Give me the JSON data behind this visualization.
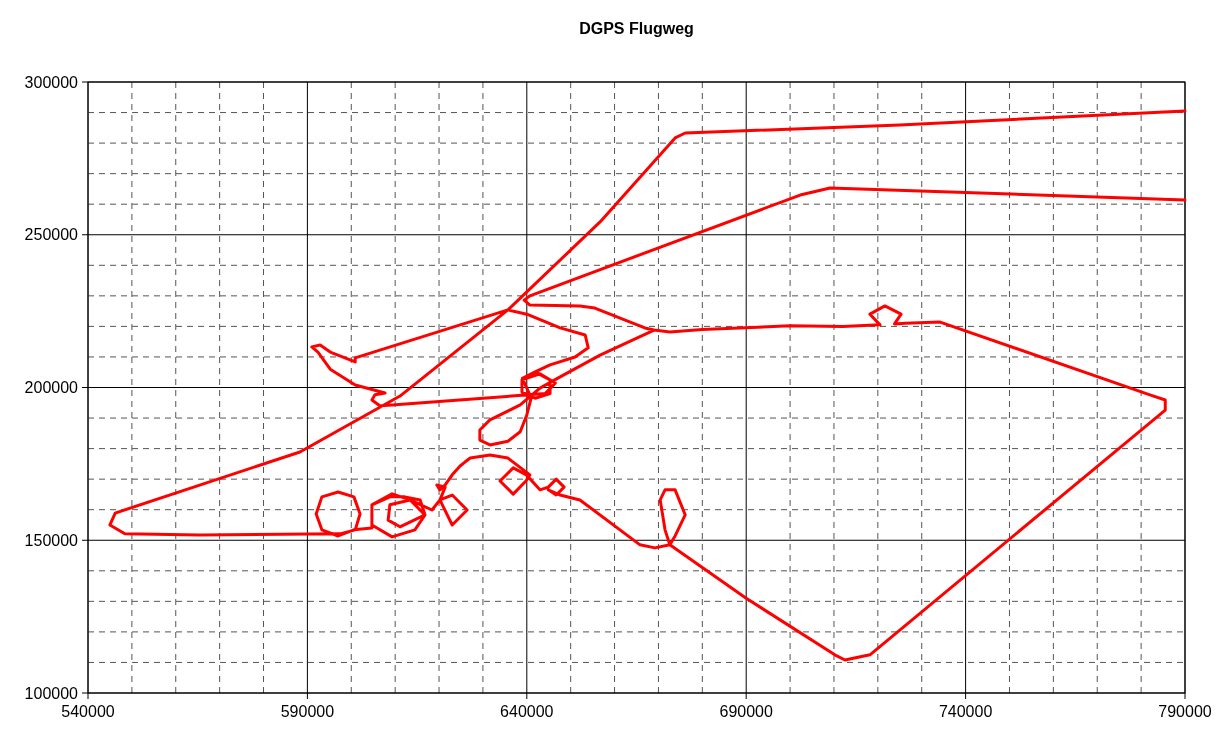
{
  "chart_data": {
    "type": "line",
    "title": "DGPS Flugweg",
    "xlim": [
      540000,
      790000
    ],
    "ylim": [
      100000,
      300000
    ],
    "xticks": [
      540000,
      {
        "value": 550000,
        "label": null
      },
      {
        "value": 560000,
        "label": null
      },
      {
        "value": 570000,
        "label": null
      },
      {
        "value": 580000,
        "label": null
      },
      590000,
      {
        "value": 600000,
        "label": null
      },
      {
        "value": 610000,
        "label": null
      },
      {
        "value": 620000,
        "label": null
      },
      {
        "value": 630000,
        "label": null
      },
      640000,
      {
        "value": 650000,
        "label": null
      },
      {
        "value": 660000,
        "label": null
      },
      {
        "value": 670000,
        "label": null
      },
      {
        "value": 680000,
        "label": null
      },
      690000,
      {
        "value": 700000,
        "label": null
      },
      {
        "value": 710000,
        "label": null
      },
      {
        "value": 720000,
        "label": null
      },
      {
        "value": 730000,
        "label": null
      },
      740000,
      {
        "value": 750000,
        "label": null
      },
      {
        "value": 760000,
        "label": null
      },
      {
        "value": 770000,
        "label": null
      },
      {
        "value": 780000,
        "label": null
      },
      790000
    ],
    "yticks": [
      100000,
      {
        "value": 110000,
        "label": null
      },
      {
        "value": 120000,
        "label": null
      },
      {
        "value": 130000,
        "label": null
      },
      {
        "value": 140000,
        "label": null
      },
      150000,
      {
        "value": 160000,
        "label": null
      },
      {
        "value": 170000,
        "label": null
      },
      {
        "value": 180000,
        "label": null
      },
      {
        "value": 190000,
        "label": null
      },
      200000,
      {
        "value": 210000,
        "label": null
      },
      {
        "value": 220000,
        "label": null
      },
      {
        "value": 230000,
        "label": null
      },
      {
        "value": 240000,
        "label": null
      },
      250000,
      {
        "value": 260000,
        "label": null
      },
      {
        "value": 270000,
        "label": null
      },
      {
        "value": 280000,
        "label": null
      },
      {
        "value": 290000,
        "label": null
      },
      300000
    ],
    "grid": true,
    "marker": "none",
    "line_style": "solid",
    "series": [
      {
        "color": "#ff0000",
        "x": [
          790000,
          725000,
          676100,
          673800,
          656700,
          635700,
          611100,
          588300,
          546200,
          545000,
          548400,
          565500,
          597400,
          600900,
          602000,
          600600,
          597000,
          593300,
          592000,
          593300,
          597000,
          600600,
          604700,
          604700,
          609300,
          613400,
          616800,
          614500,
          609300,
          604700,
          604700,
          608800,
          612200,
          615700,
          616800,
          611100,
          608400,
          608800,
          613400,
          618400,
          620200,
          623000,
          626400,
          623000,
          620200,
          621400,
          619500,
          620200,
          621400,
          623000,
          624800,
          625900,
          627100,
          631600,
          635700,
          640700,
          639800,
          636900,
          633900,
          636900,
          639900,
          643000,
          644900,
          646700,
          648500,
          646700,
          644900,
          647600,
          652100,
          665800,
          669200,
          672600,
          671500,
          670400,
          671500,
          673800,
          676100,
          673800,
          672600,
          690000,
          710200,
          712500,
          718200,
          785500,
          785500,
          782000,
          734200,
          726200,
          723800,
          725300,
          721600,
          718200,
          720500,
          712000,
          700000,
          680000,
          672600,
          669000,
          666900,
          655500,
          652100,
          640700,
          639400,
          640700,
          702300,
          709100,
          790000,
          null,
          669000,
          656700,
          647600,
          643000,
          638500,
          631600,
          629300,
          629300,
          631600,
          635700,
          638500,
          640000,
          641000,
          639000,
          641900,
          645300,
          645300,
          641900,
          638900,
          638900,
          643000,
          646500,
          644200,
          609300,
          606500,
          604700,
          605400,
          607700,
          600900,
          595200,
          592400,
          591000,
          592900,
          595200,
          600900,
          600900,
          635700,
          640000,
          647600,
          653300,
          654000,
          651000,
          645300,
          641900
        ],
        "values": [
          290500,
          285900,
          283300,
          281700,
          254200,
          225400,
          197200,
          178900,
          158900,
          155000,
          152100,
          151700,
          152100,
          153400,
          158600,
          164200,
          165800,
          164200,
          158600,
          153400,
          151400,
          153400,
          154000,
          161600,
          165200,
          163200,
          158300,
          153400,
          151100,
          155000,
          161600,
          164200,
          164200,
          163200,
          158300,
          154400,
          156600,
          161600,
          163200,
          159900,
          163200,
          155000,
          159900,
          164800,
          163200,
          167400,
          168100,
          166500,
          168100,
          171400,
          174300,
          175600,
          176900,
          177900,
          176900,
          171400,
          169400,
          165100,
          169400,
          173700,
          171400,
          166500,
          167400,
          170000,
          167400,
          164800,
          166500,
          164800,
          163200,
          148500,
          147500,
          148500,
          153400,
          163200,
          166500,
          166500,
          158300,
          151400,
          148500,
          131000,
          112500,
          110800,
          112500,
          192600,
          195900,
          197600,
          221400,
          221000,
          220800,
          224000,
          226700,
          224000,
          220500,
          220000,
          220200,
          219000,
          218200,
          218800,
          219500,
          226000,
          226700,
          227000,
          228600,
          230000,
          263000,
          265300,
          261400,
          null,
          218800,
          210600,
          203500,
          199800,
          194300,
          189400,
          186100,
          182800,
          181200,
          182400,
          185500,
          191000,
          196600,
          203000,
          205100,
          202500,
          198000,
          196500,
          198500,
          202500,
          204500,
          201500,
          198000,
          194300,
          194000,
          195900,
          197600,
          198200,
          200800,
          206000,
          211600,
          213300,
          213900,
          211600,
          208400,
          209700,
          225400,
          224000,
          219500,
          217200,
          213000,
          210000,
          207400,
          205100
        ]
      }
    ]
  }
}
